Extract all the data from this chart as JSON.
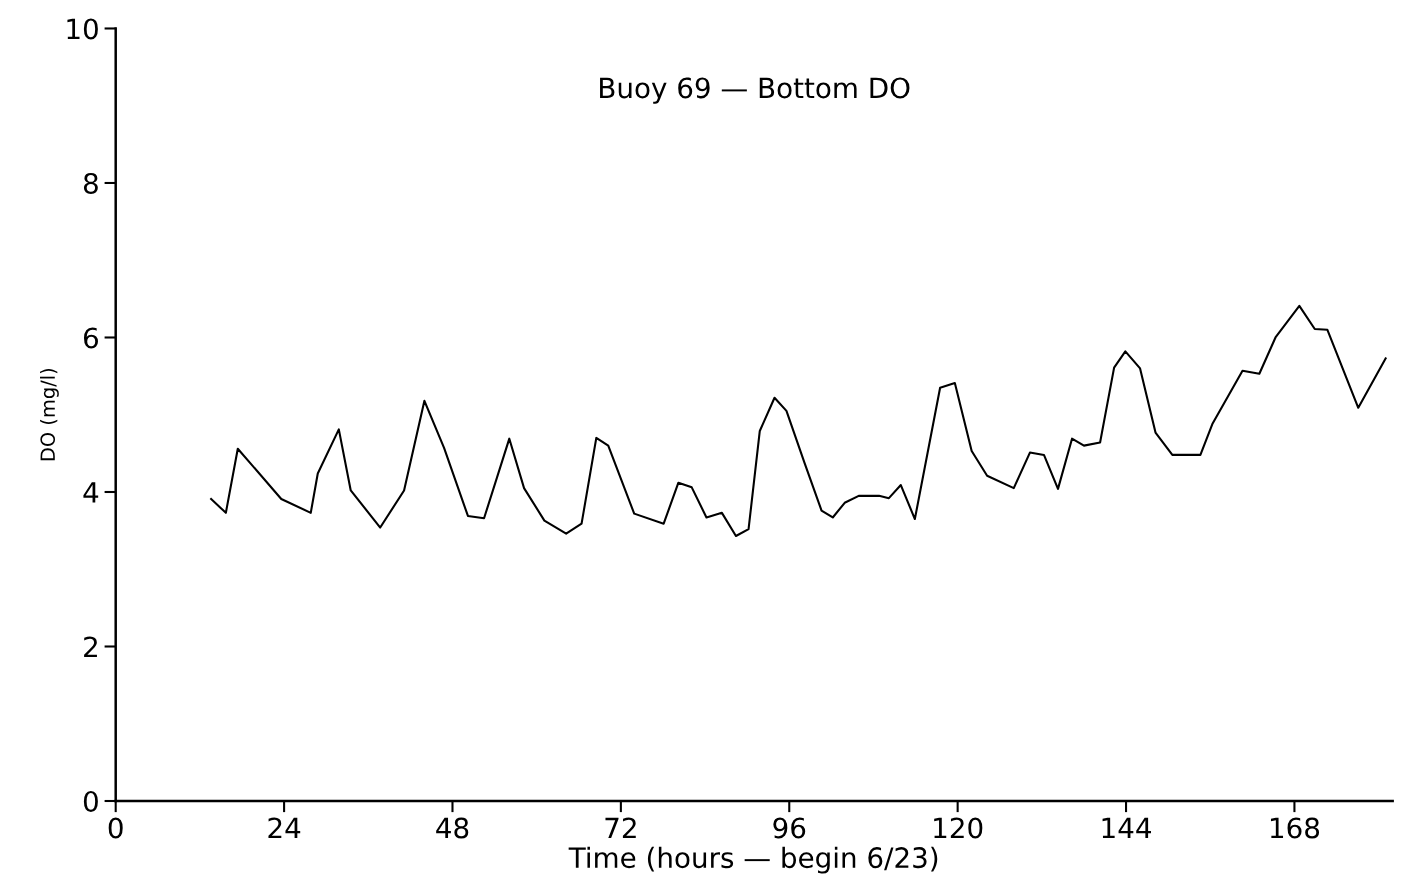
{
  "chart_data": {
    "type": "line",
    "title": "Buoy 69 — Bottom DO",
    "xlabel": "Time (hours — begin 6/23)",
    "ylabel": "DO (mg/l)",
    "xlim": [
      0,
      182
    ],
    "ylim": [
      0,
      10
    ],
    "xticks": [
      0,
      24,
      48,
      72,
      96,
      120,
      144,
      168
    ],
    "yticks": [
      0,
      2,
      4,
      6,
      8,
      10
    ],
    "grid": false,
    "legend": false,
    "marker": "none",
    "line_style": "solid",
    "series": [
      {
        "color": "#000000",
        "x": [
          13.6,
          15.7,
          17.4,
          23.6,
          27.8,
          28.8,
          31.8,
          33.5,
          37.7,
          41.1,
          44.0,
          46.8,
          50.2,
          52.5,
          56.1,
          58.2,
          61.1,
          64.2,
          66.4,
          68.5,
          70.2,
          73.9,
          78.1,
          80.2,
          82.1,
          84.2,
          86.4,
          88.4,
          90.2,
          91.8,
          93.9,
          95.6,
          98.2,
          100.6,
          102.2,
          103.9,
          105.9,
          108.8,
          110.2,
          111.9,
          113.9,
          115.3,
          117.5,
          119.6,
          122.0,
          124.2,
          128.0,
          130.3,
          132.3,
          134.3,
          136.3,
          138.0,
          140.3,
          142.3,
          143.9,
          146.0,
          148.2,
          150.6,
          154.6,
          156.3,
          160.6,
          163.0,
          165.3,
          168.7,
          170.9,
          172.7,
          177.1,
          181.0
        ],
        "values": [
          3.91,
          3.73,
          4.56,
          3.91,
          3.73,
          4.24,
          4.81,
          4.02,
          3.54,
          4.02,
          5.18,
          4.57,
          3.69,
          3.66,
          4.69,
          4.05,
          3.63,
          3.46,
          3.59,
          4.7,
          4.6,
          3.72,
          3.59,
          4.12,
          4.06,
          3.67,
          3.73,
          3.43,
          3.52,
          4.79,
          5.22,
          5.05,
          4.37,
          3.76,
          3.67,
          3.86,
          3.95,
          3.95,
          3.92,
          4.09,
          3.65,
          4.31,
          5.35,
          5.41,
          4.53,
          4.21,
          4.05,
          4.51,
          4.48,
          4.04,
          4.69,
          4.6,
          4.64,
          5.61,
          5.82,
          5.6,
          4.77,
          4.48,
          4.48,
          4.88,
          5.57,
          5.53,
          6.0,
          6.41,
          6.11,
          6.1,
          5.09,
          5.73
        ]
      }
    ]
  }
}
